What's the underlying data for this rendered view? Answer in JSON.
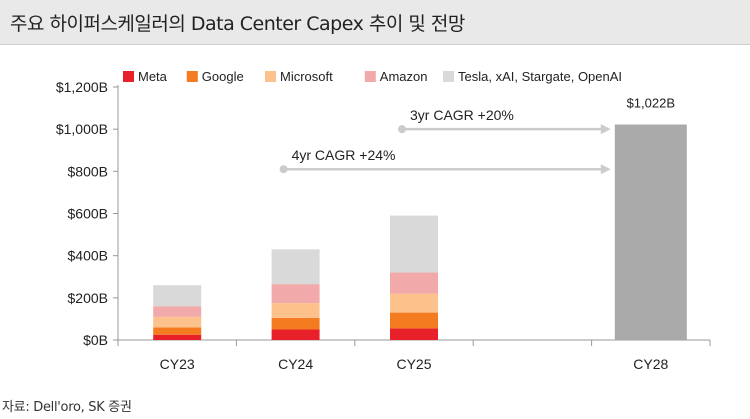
{
  "header": {
    "title": "주요 하이퍼스케일러의 Data Center Capex 추이 및 전망"
  },
  "source": "자료: Dell'oro, SK 증권",
  "chart_data": {
    "type": "bar",
    "stacked": true,
    "categories": [
      "CY23",
      "CY24",
      "CY25",
      "",
      "CY28"
    ],
    "y_ticks": [
      "$0B",
      "$200B",
      "$400B",
      "$600B",
      "$800B",
      "$1,000B",
      "$1,200B"
    ],
    "ylim": [
      0,
      1200
    ],
    "grid": false,
    "legend_position": "top",
    "series": [
      {
        "name": "Meta",
        "color": "#e8202a",
        "values": [
          25,
          50,
          55,
          null,
          null
        ]
      },
      {
        "name": "Google",
        "color": "#f47b20",
        "values": [
          35,
          55,
          75,
          null,
          null
        ]
      },
      {
        "name": "Microsoft",
        "color": "#fdc28c",
        "values": [
          50,
          70,
          90,
          null,
          null
        ]
      },
      {
        "name": "Amazon",
        "color": "#f2a9a9",
        "values": [
          50,
          90,
          100,
          null,
          null
        ]
      },
      {
        "name": "Tesla, xAI, Stargate, OpenAI",
        "color": "#d9d9d9",
        "values": [
          100,
          165,
          270,
          null,
          null
        ]
      }
    ],
    "totals_series": {
      "color": "#aaaaaa",
      "values": [
        null,
        null,
        null,
        null,
        1022
      ]
    },
    "data_labels": [
      {
        "category": "CY28",
        "text": "$1,022B"
      }
    ],
    "annotations": [
      {
        "text": "3yr CAGR +20%",
        "from": "CY25",
        "to": "CY28",
        "level": 1000
      },
      {
        "text": "4yr CAGR +24%",
        "from": "CY24",
        "to": "CY28",
        "level": 810
      }
    ]
  }
}
